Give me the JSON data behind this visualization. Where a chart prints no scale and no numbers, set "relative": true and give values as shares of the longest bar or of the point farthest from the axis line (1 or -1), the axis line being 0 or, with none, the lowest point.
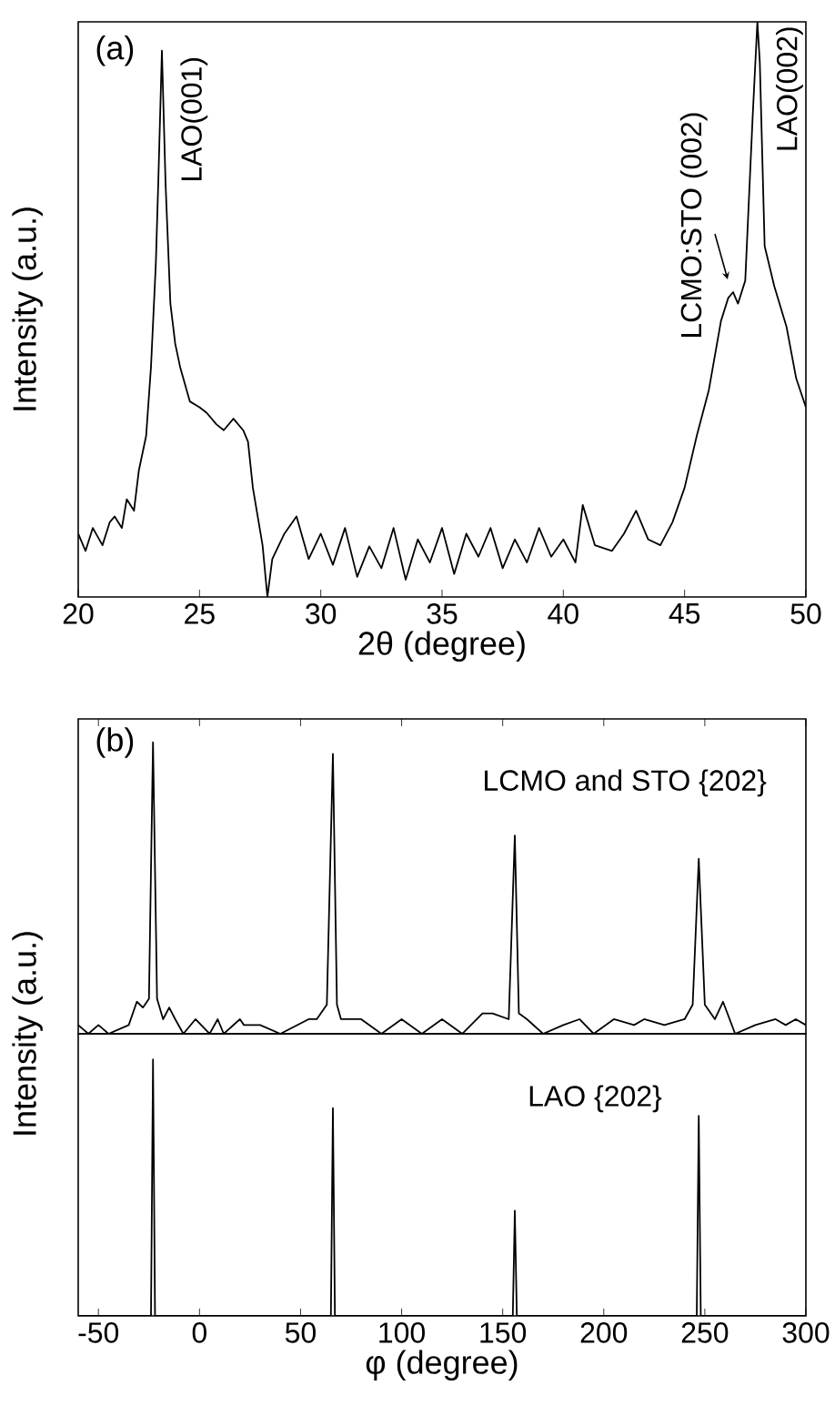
{
  "chart_data": [
    {
      "type": "line",
      "relative": true,
      "xlabel": "2θ (degree)",
      "ylabel": "Intensity (a.u.)",
      "xlim": [
        20,
        50
      ],
      "xticks": [
        20,
        25,
        30,
        35,
        40,
        45,
        50
      ],
      "annotations": [
        "(a)",
        {
          "text": "LAO(001)",
          "x": 23.45,
          "y": 0.95
        },
        {
          "text": "LCMO:STO (002)",
          "x": 47,
          "y": 0.53
        },
        {
          "text": "LAO(002)",
          "x": 48,
          "y": 1.0
        }
      ],
      "series": [
        {
          "color": "#000000",
          "x": [
            20,
            20.3,
            20.6,
            21,
            21.3,
            21.5,
            21.8,
            22,
            22.3,
            22.5,
            22.8,
            23,
            23.2,
            23.3,
            23.45,
            23.6,
            23.8,
            24,
            24.2,
            24.6,
            25,
            25.3,
            25.7,
            26,
            26.4,
            26.8,
            27,
            27.2,
            27.4,
            27.6,
            27.8,
            28,
            28.5,
            29,
            29.5,
            30,
            30.5,
            31,
            31.5,
            32,
            32.5,
            33,
            33.5,
            34,
            34.5,
            35,
            35.5,
            36,
            36.5,
            37,
            37.5,
            38,
            38.5,
            39,
            39.5,
            40,
            40.5,
            40.8,
            41.3,
            42,
            42.5,
            43,
            43.5,
            44,
            44.5,
            45,
            45.5,
            46,
            46.5,
            46.8,
            47,
            47.2,
            47.5,
            47.8,
            48,
            48.1,
            48.3,
            48.7,
            49.2,
            49.6,
            50
          ],
          "values": [
            0.11,
            0.08,
            0.12,
            0.09,
            0.13,
            0.14,
            0.12,
            0.17,
            0.15,
            0.22,
            0.28,
            0.4,
            0.58,
            0.72,
            0.95,
            0.72,
            0.51,
            0.44,
            0.4,
            0.34,
            0.33,
            0.32,
            0.3,
            0.29,
            0.31,
            0.29,
            0.27,
            0.19,
            0.14,
            0.09,
            0.0,
            0.066,
            0.11,
            0.14,
            0.066,
            0.11,
            0.056,
            0.12,
            0.035,
            0.088,
            0.05,
            0.12,
            0.03,
            0.1,
            0.06,
            0.12,
            0.04,
            0.11,
            0.07,
            0.12,
            0.05,
            0.1,
            0.06,
            0.12,
            0.07,
            0.1,
            0.06,
            0.16,
            0.09,
            0.08,
            0.11,
            0.15,
            0.1,
            0.09,
            0.13,
            0.19,
            0.28,
            0.36,
            0.48,
            0.52,
            0.53,
            0.51,
            0.55,
            0.83,
            1.0,
            0.93,
            0.61,
            0.54,
            0.47,
            0.38,
            0.33
          ]
        }
      ]
    },
    {
      "type": "line",
      "relative": true,
      "ylabel": "Intensity (a.u.)",
      "xlim": [
        -60,
        300
      ],
      "xticks": [
        -50,
        0,
        50,
        100,
        150,
        200,
        250,
        300
      ],
      "tick_labels": false,
      "annotations": [
        "(b)"
      ],
      "series": [
        {
          "name": "LCMO and STO {202}",
          "color": "#000000",
          "x": [
            -60,
            -55,
            -50,
            -45,
            -35,
            -31,
            -28,
            -25,
            -23,
            -21,
            -18,
            -15,
            -12,
            -8,
            -2,
            5,
            9,
            12,
            20,
            22,
            30,
            40,
            54,
            58,
            63,
            66,
            68,
            70,
            80,
            90,
            100,
            110,
            120,
            130,
            140,
            145,
            153,
            156,
            158,
            162,
            170,
            180,
            188,
            195,
            205,
            215,
            220,
            230,
            240,
            244,
            247,
            250,
            255,
            259,
            265,
            275,
            285,
            290,
            295,
            300
          ],
          "values": [
            0.03,
            0,
            0.03,
            0,
            0.03,
            0.11,
            0.09,
            0.12,
            1.0,
            0.12,
            0.05,
            0.09,
            0.05,
            0,
            0.05,
            0,
            0.05,
            0,
            0.05,
            0.03,
            0.03,
            0,
            0.05,
            0.05,
            0.1,
            0.96,
            0.1,
            0.05,
            0.05,
            0,
            0.05,
            0,
            0.05,
            0,
            0.07,
            0.07,
            0.05,
            0.68,
            0.07,
            0.05,
            0,
            0.03,
            0.05,
            0,
            0.05,
            0.03,
            0.05,
            0.03,
            0.05,
            0.1,
            0.6,
            0.1,
            0.05,
            0.11,
            0,
            0.03,
            0.05,
            0.03,
            0.05,
            0.03
          ]
        }
      ]
    },
    {
      "type": "line",
      "relative": true,
      "xlabel": "φ (degree)",
      "xlim": [
        -60,
        300
      ],
      "xticks": [
        -50,
        0,
        50,
        100,
        150,
        200,
        250,
        300
      ],
      "series": [
        {
          "name": "LAO {202}",
          "color": "#000000",
          "x": [
            -60,
            -24,
            -23,
            -22,
            65,
            66,
            67,
            155,
            156,
            157,
            246,
            247,
            248,
            300
          ],
          "values": [
            0,
            0,
            1.0,
            0,
            0,
            0.81,
            0,
            0,
            0.41,
            0,
            0,
            0.78,
            0,
            0
          ]
        }
      ]
    }
  ]
}
